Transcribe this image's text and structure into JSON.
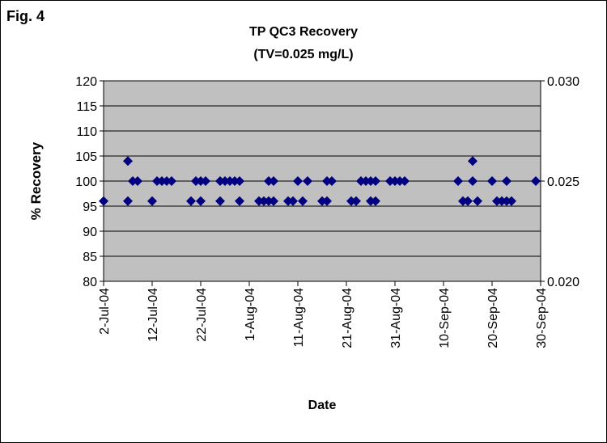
{
  "figure_label": "Fig.  4",
  "chart_data": {
    "type": "scatter",
    "title": "TP QC3 Recovery",
    "subtitle": "(TV=0.025 mg/L)",
    "x_label": "Date",
    "y_label": "% Recovery",
    "xlim": [
      "2004-07-02",
      "2004-09-30"
    ],
    "xticks": [
      {
        "value": "2004-07-02",
        "label": "2-Jul-04"
      },
      {
        "value": "2004-07-12",
        "label": "12-Jul-04"
      },
      {
        "value": "2004-07-22",
        "label": "22-Jul-04"
      },
      {
        "value": "2004-08-01",
        "label": "1-Aug-04"
      },
      {
        "value": "2004-08-11",
        "label": "11-Aug-04"
      },
      {
        "value": "2004-08-21",
        "label": "21-Aug-04"
      },
      {
        "value": "2004-08-31",
        "label": "31-Aug-04"
      },
      {
        "value": "2004-09-10",
        "label": "10-Sep-04"
      },
      {
        "value": "2004-09-20",
        "label": "20-Sep-04"
      },
      {
        "value": "2004-09-30",
        "label": "30-Sep-04"
      }
    ],
    "ylim": [
      80,
      120
    ],
    "yticks": [
      80,
      85,
      90,
      95,
      100,
      105,
      110,
      115,
      120
    ],
    "y2lim": [
      0.02,
      0.03
    ],
    "y2ticks": [
      {
        "value": 0.02,
        "label": "0.020"
      },
      {
        "value": 0.025,
        "label": "0.025"
      },
      {
        "value": 0.03,
        "label": "0.030"
      }
    ],
    "grid": true,
    "series": [
      {
        "color": "#000080",
        "x": [
          "2004-07-02",
          "2004-07-07",
          "2004-07-07",
          "2004-07-08",
          "2004-07-09",
          "2004-07-12",
          "2004-07-13",
          "2004-07-14",
          "2004-07-15",
          "2004-07-16",
          "2004-07-20",
          "2004-07-21",
          "2004-07-22",
          "2004-07-22",
          "2004-07-23",
          "2004-07-26",
          "2004-07-26",
          "2004-07-27",
          "2004-07-28",
          "2004-07-29",
          "2004-07-30",
          "2004-07-30",
          "2004-08-03",
          "2004-08-04",
          "2004-08-05",
          "2004-08-05",
          "2004-08-06",
          "2004-08-06",
          "2004-08-09",
          "2004-08-10",
          "2004-08-11",
          "2004-08-12",
          "2004-08-13",
          "2004-08-16",
          "2004-08-17",
          "2004-08-17",
          "2004-08-18",
          "2004-08-22",
          "2004-08-23",
          "2004-08-24",
          "2004-08-25",
          "2004-08-26",
          "2004-08-26",
          "2004-08-27",
          "2004-08-27",
          "2004-08-30",
          "2004-08-31",
          "2004-09-01",
          "2004-09-02",
          "2004-09-13",
          "2004-09-14",
          "2004-09-15",
          "2004-09-16",
          "2004-09-16",
          "2004-09-17",
          "2004-09-20",
          "2004-09-21",
          "2004-09-22",
          "2004-09-23",
          "2004-09-23",
          "2004-09-24",
          "2004-09-29"
        ],
        "values": [
          96,
          104,
          96,
          100,
          100,
          96,
          100,
          100,
          100,
          100,
          96,
          100,
          96,
          100,
          100,
          96,
          100,
          100,
          100,
          100,
          100,
          96,
          96,
          96,
          96,
          100,
          100,
          96,
          96,
          96,
          100,
          96,
          100,
          96,
          96,
          100,
          100,
          96,
          96,
          100,
          100,
          100,
          96,
          100,
          96,
          100,
          100,
          100,
          100,
          100,
          96,
          96,
          104,
          100,
          96,
          100,
          96,
          96,
          100,
          96,
          96,
          100
        ]
      }
    ]
  }
}
